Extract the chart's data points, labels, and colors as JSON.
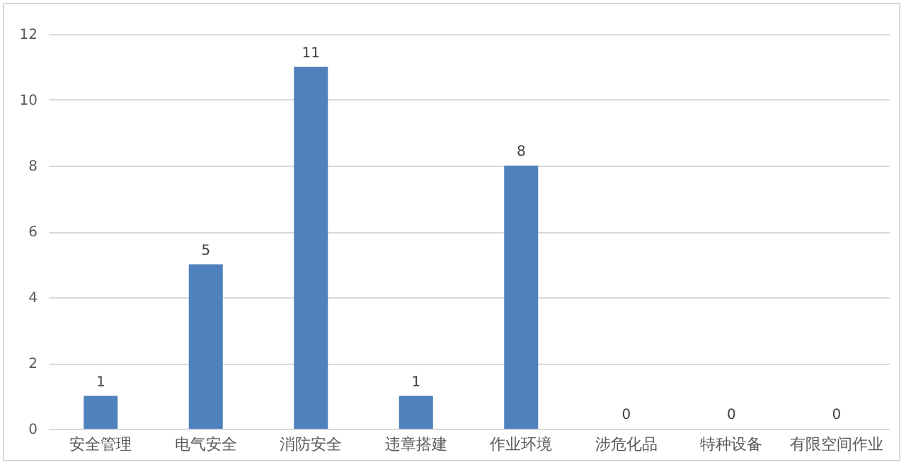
{
  "chart_data": {
    "type": "bar",
    "categories": [
      "安全管理",
      "电气安全",
      "消防安全",
      "违章搭建",
      "作业环境",
      "涉危化品",
      "特种设备",
      "有限空间作业"
    ],
    "values": [
      1,
      5,
      11,
      1,
      8,
      0,
      0,
      0
    ],
    "color": "#4f81bd",
    "ylim": [
      0,
      12
    ],
    "yticks": [
      0,
      2,
      4,
      6,
      8,
      10,
      12
    ],
    "grid": "y",
    "data_labels": true
  }
}
